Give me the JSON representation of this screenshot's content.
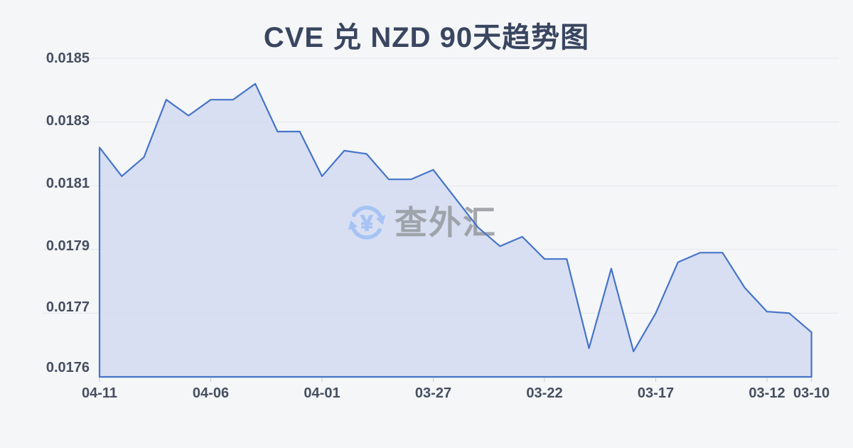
{
  "title": "CVE 兑 NZD 90天趋势图",
  "watermark": {
    "text": "查外汇",
    "icon": "currency-exchange-icon"
  },
  "colors": {
    "background": "#f4f6f8",
    "line": "#4674c8",
    "area_fill": "#ccd5ef",
    "grid": "#e4e6ea",
    "tick": "#c8ccd2",
    "title_text": "#3a4660",
    "axis_text": "#464f5f",
    "watermark_text": "#989ba1",
    "watermark_icon": "#a4c2f5"
  },
  "chart_data": {
    "type": "area",
    "title": "CVE 兑 NZD 90天趋势图",
    "series_name": "CVE/NZD",
    "x": [
      "04-11",
      "04-10",
      "04-09",
      "04-08",
      "04-07",
      "04-06",
      "04-05",
      "04-04",
      "04-03",
      "04-02",
      "04-01",
      "03-31",
      "03-30",
      "03-29",
      "03-28",
      "03-27",
      "03-26",
      "03-25",
      "03-24",
      "03-23",
      "03-22",
      "03-21",
      "03-20",
      "03-19",
      "03-18",
      "03-17",
      "03-16",
      "03-15",
      "03-14",
      "03-13",
      "03-12",
      "03-11",
      "03-10"
    ],
    "values": [
      0.01822,
      0.01813,
      0.01819,
      0.01837,
      0.01832,
      0.01837,
      0.01837,
      0.01842,
      0.01827,
      0.01827,
      0.01813,
      0.01821,
      0.0182,
      0.01812,
      0.01812,
      0.01815,
      0.01806,
      0.01797,
      0.01791,
      0.01794,
      0.01787,
      0.01787,
      0.017645,
      0.01784,
      0.01764,
      0.0177,
      0.01786,
      0.01789,
      0.01789,
      0.01778,
      0.017705,
      0.0177,
      0.01767
    ],
    "x_tick_labels": [
      "04-11",
      "04-06",
      "04-01",
      "03-27",
      "03-22",
      "03-17",
      "03-12",
      "03-10"
    ],
    "x_tick_indices": [
      0,
      5,
      10,
      15,
      20,
      25,
      30,
      32
    ],
    "y_tick_labels": [
      "0.0185",
      "0.0183",
      "0.0181",
      "0.0179",
      "0.0177",
      "0.0176"
    ],
    "y_tick_values": [
      0.0185,
      0.0183,
      0.0181,
      0.0179,
      0.0177,
      0.0176
    ],
    "y_axis_note": "ticks drawn equally spaced (non-uniform value scale at bottom interval)",
    "x_axis_reversed_time": true,
    "grid": true,
    "legend": false,
    "xlabel": "",
    "ylabel": ""
  }
}
